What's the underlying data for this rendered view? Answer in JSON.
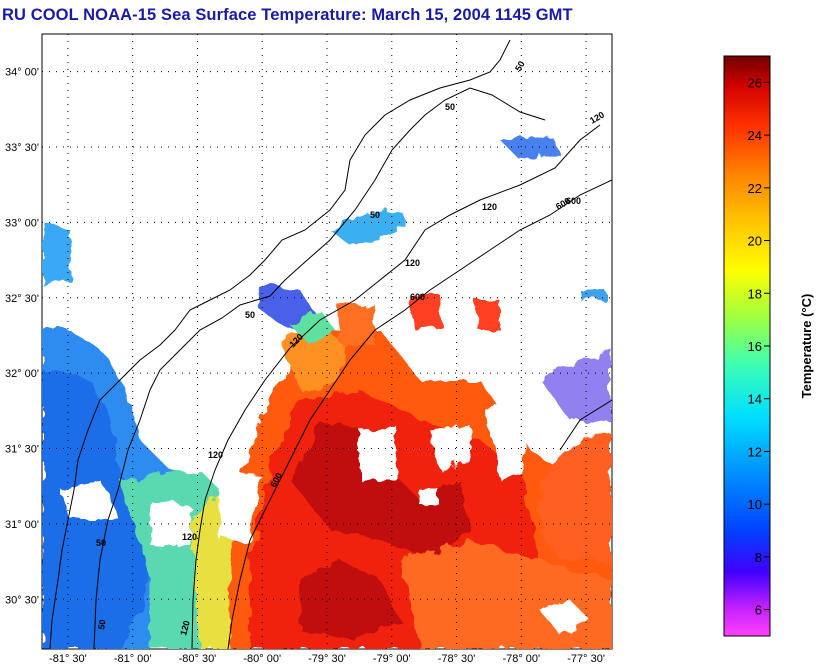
{
  "title": "RU COOL  NOAA-15  Sea Surface Temperature:  March 15, 2004 1145 GMT",
  "map": {
    "lat_labels": [
      "34° 00'",
      "33° 30'",
      "33° 00'",
      "32° 30'",
      "32° 00'",
      "31° 30'",
      "31° 00'",
      "30° 30'"
    ],
    "lon_labels": [
      "-81° 30'",
      "-81° 00'",
      "-80° 30'",
      "-80° 00'",
      "-79° 30'",
      "-79° 00'",
      "-78° 30'",
      "-78° 00'",
      "-77° 30'"
    ],
    "lat_values": [
      34.0,
      33.5,
      33.0,
      32.5,
      32.0,
      31.5,
      31.0,
      30.5
    ],
    "lon_values": [
      -81.5,
      -81.0,
      -80.5,
      -80.0,
      -79.5,
      -79.0,
      -78.5,
      -78.0,
      -77.5
    ],
    "lat_range": [
      30.17,
      34.25
    ],
    "lon_range": [
      -81.7,
      -77.3
    ],
    "grid": "dotted",
    "isobath_labels": [
      "50",
      "50",
      "50",
      "50",
      "50",
      "50",
      "120",
      "120",
      "120",
      "120",
      "120",
      "120",
      "120",
      "600",
      "600",
      "600",
      "600"
    ]
  },
  "colorbar": {
    "title": "Temperature (°C)",
    "ticks": [
      6,
      8,
      10,
      12,
      14,
      16,
      18,
      20,
      22,
      24,
      26
    ],
    "range": [
      5,
      27
    ],
    "colors": [
      "#ff40ff",
      "#c020ff",
      "#4000ff",
      "#0040ff",
      "#0090ff",
      "#00e0ff",
      "#40ffb0",
      "#a0ff40",
      "#ffff00",
      "#ffc000",
      "#ff8000",
      "#ff3000",
      "#d00000",
      "#700000"
    ]
  }
}
